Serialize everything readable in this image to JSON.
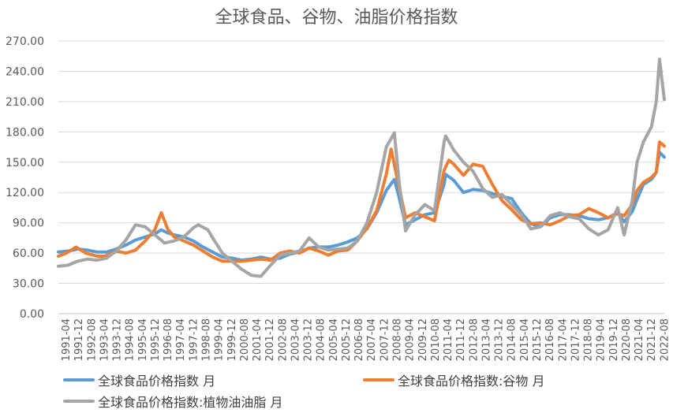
{
  "chart_data": {
    "type": "line",
    "title": "全球食品、谷物、油脂价格指数",
    "xlabel": "",
    "ylabel": "",
    "ylim": [
      0,
      270
    ],
    "y_ticks": [
      "0.00",
      "30.00",
      "60.00",
      "90.00",
      "120.00",
      "150.00",
      "180.00",
      "210.00",
      "240.00",
      "270.00"
    ],
    "x_tick_labels": [
      "1991-04",
      "1991-12",
      "1992-08",
      "1993-04",
      "1993-12",
      "1994-08",
      "1995-04",
      "1995-12",
      "1996-08",
      "1997-04",
      "1997-12",
      "1998-08",
      "1999-04",
      "1999-12",
      "2000-08",
      "2001-04",
      "2001-12",
      "2002-08",
      "2003-04",
      "2003-12",
      "2004-08",
      "2005-04",
      "2005-12",
      "2006-08",
      "2007-04",
      "2007-12",
      "2008-08",
      "2009-04",
      "2009-12",
      "2010-08",
      "2011-04",
      "2011-12",
      "2012-08",
      "2013-04",
      "2013-12",
      "2014-08",
      "2015-04",
      "2015-12",
      "2016-08",
      "2017-04",
      "2017-12",
      "2018-08",
      "2019-04",
      "2019-12",
      "2020-08",
      "2021-04",
      "2021-12",
      "2022-08"
    ],
    "x_range": [
      "1991-01",
      "2022-06"
    ],
    "grid": true,
    "legend_position": "bottom",
    "series": [
      {
        "name": "全球食品价格指数 月",
        "color": "#5B9BD5",
        "points": [
          [
            "1991-01",
            61
          ],
          [
            "1991-07",
            62
          ],
          [
            "1992-01",
            64
          ],
          [
            "1992-07",
            63
          ],
          [
            "1993-01",
            61
          ],
          [
            "1993-07",
            61
          ],
          [
            "1994-01",
            64
          ],
          [
            "1994-07",
            68
          ],
          [
            "1995-01",
            73
          ],
          [
            "1995-07",
            76
          ],
          [
            "1996-01",
            79
          ],
          [
            "1996-05",
            83
          ],
          [
            "1996-09",
            80
          ],
          [
            "1997-01",
            78
          ],
          [
            "1997-07",
            76
          ],
          [
            "1998-01",
            72
          ],
          [
            "1998-07",
            66
          ],
          [
            "1999-01",
            61
          ],
          [
            "1999-07",
            56
          ],
          [
            "2000-01",
            55
          ],
          [
            "2000-07",
            53
          ],
          [
            "2001-01",
            54
          ],
          [
            "2001-07",
            56
          ],
          [
            "2002-01",
            54
          ],
          [
            "2002-07",
            55
          ],
          [
            "2003-01",
            59
          ],
          [
            "2003-07",
            61
          ],
          [
            "2004-01",
            65
          ],
          [
            "2004-07",
            66
          ],
          [
            "2005-01",
            66
          ],
          [
            "2005-07",
            68
          ],
          [
            "2006-01",
            71
          ],
          [
            "2006-07",
            75
          ],
          [
            "2007-01",
            84
          ],
          [
            "2007-07",
            100
          ],
          [
            "2008-01",
            122
          ],
          [
            "2008-06",
            133
          ],
          [
            "2008-09",
            115
          ],
          [
            "2009-01",
            88
          ],
          [
            "2009-07",
            93
          ],
          [
            "2010-01",
            98
          ],
          [
            "2010-07",
            100
          ],
          [
            "2011-01",
            128
          ],
          [
            "2011-02",
            138
          ],
          [
            "2011-07",
            132
          ],
          [
            "2012-01",
            120
          ],
          [
            "2012-07",
            123
          ],
          [
            "2013-01",
            122
          ],
          [
            "2013-07",
            119
          ],
          [
            "2014-01",
            116
          ],
          [
            "2014-07",
            114
          ],
          [
            "2015-01",
            100
          ],
          [
            "2015-07",
            89
          ],
          [
            "2016-01",
            86
          ],
          [
            "2016-07",
            95
          ],
          [
            "2017-01",
            98
          ],
          [
            "2017-07",
            98
          ],
          [
            "2018-01",
            97
          ],
          [
            "2018-07",
            94
          ],
          [
            "2019-01",
            93
          ],
          [
            "2019-07",
            95
          ],
          [
            "2020-01",
            100
          ],
          [
            "2020-05",
            91
          ],
          [
            "2020-10",
            101
          ],
          [
            "2021-01",
            113
          ],
          [
            "2021-05",
            128
          ],
          [
            "2021-10",
            133
          ],
          [
            "2022-01",
            140
          ],
          [
            "2022-03",
            160
          ],
          [
            "2022-06",
            155
          ]
        ]
      },
      {
        "name": "全球食品价格指数:谷物 月",
        "color": "#ED7D31",
        "points": [
          [
            "1991-01",
            57
          ],
          [
            "1991-06",
            60
          ],
          [
            "1991-12",
            66
          ],
          [
            "1992-06",
            60
          ],
          [
            "1993-01",
            57
          ],
          [
            "1993-06",
            57
          ],
          [
            "1994-01",
            62
          ],
          [
            "1994-07",
            60
          ],
          [
            "1995-01",
            63
          ],
          [
            "1995-07",
            72
          ],
          [
            "1996-01",
            83
          ],
          [
            "1996-05",
            100
          ],
          [
            "1996-09",
            84
          ],
          [
            "1997-01",
            76
          ],
          [
            "1997-07",
            72
          ],
          [
            "1998-01",
            68
          ],
          [
            "1998-07",
            62
          ],
          [
            "1999-01",
            56
          ],
          [
            "1999-07",
            52
          ],
          [
            "2000-01",
            52
          ],
          [
            "2000-07",
            52
          ],
          [
            "2001-01",
            53
          ],
          [
            "2001-07",
            54
          ],
          [
            "2002-01",
            53
          ],
          [
            "2002-07",
            60
          ],
          [
            "2003-01",
            62
          ],
          [
            "2003-07",
            60
          ],
          [
            "2004-01",
            65
          ],
          [
            "2004-07",
            62
          ],
          [
            "2005-01",
            58
          ],
          [
            "2005-07",
            62
          ],
          [
            "2006-01",
            63
          ],
          [
            "2006-07",
            72
          ],
          [
            "2007-01",
            85
          ],
          [
            "2007-07",
            102
          ],
          [
            "2008-01",
            138
          ],
          [
            "2008-04",
            163
          ],
          [
            "2008-09",
            125
          ],
          [
            "2009-01",
            95
          ],
          [
            "2009-07",
            100
          ],
          [
            "2010-01",
            96
          ],
          [
            "2010-07",
            92
          ],
          [
            "2011-01",
            142
          ],
          [
            "2011-04",
            152
          ],
          [
            "2011-07",
            148
          ],
          [
            "2012-01",
            137
          ],
          [
            "2012-07",
            148
          ],
          [
            "2013-01",
            146
          ],
          [
            "2013-07",
            128
          ],
          [
            "2014-01",
            112
          ],
          [
            "2014-07",
            103
          ],
          [
            "2015-01",
            93
          ],
          [
            "2015-07",
            89
          ],
          [
            "2016-01",
            90
          ],
          [
            "2016-07",
            88
          ],
          [
            "2017-01",
            92
          ],
          [
            "2017-07",
            97
          ],
          [
            "2018-01",
            98
          ],
          [
            "2018-07",
            104
          ],
          [
            "2019-01",
            100
          ],
          [
            "2019-07",
            95
          ],
          [
            "2020-01",
            99
          ],
          [
            "2020-05",
            97
          ],
          [
            "2020-10",
            108
          ],
          [
            "2021-01",
            122
          ],
          [
            "2021-05",
            130
          ],
          [
            "2021-10",
            135
          ],
          [
            "2022-01",
            140
          ],
          [
            "2022-03",
            170
          ],
          [
            "2022-06",
            166
          ]
        ]
      },
      {
        "name": "全球食品价格指数:植物油油脂 月",
        "color": "#A5A5A5",
        "points": [
          [
            "1991-01",
            47
          ],
          [
            "1991-07",
            48
          ],
          [
            "1992-01",
            52
          ],
          [
            "1992-07",
            54
          ],
          [
            "1993-01",
            53
          ],
          [
            "1993-07",
            55
          ],
          [
            "1994-01",
            62
          ],
          [
            "1994-07",
            73
          ],
          [
            "1995-01",
            88
          ],
          [
            "1995-07",
            86
          ],
          [
            "1996-01",
            78
          ],
          [
            "1996-07",
            70
          ],
          [
            "1997-01",
            72
          ],
          [
            "1997-07",
            76
          ],
          [
            "1998-01",
            85
          ],
          [
            "1998-04",
            88
          ],
          [
            "1998-10",
            83
          ],
          [
            "1999-01",
            75
          ],
          [
            "1999-07",
            60
          ],
          [
            "2000-01",
            52
          ],
          [
            "2000-07",
            44
          ],
          [
            "2001-01",
            38
          ],
          [
            "2001-07",
            37
          ],
          [
            "2002-01",
            48
          ],
          [
            "2002-07",
            58
          ],
          [
            "2003-01",
            60
          ],
          [
            "2003-07",
            62
          ],
          [
            "2004-01",
            75
          ],
          [
            "2004-07",
            66
          ],
          [
            "2005-01",
            63
          ],
          [
            "2005-07",
            64
          ],
          [
            "2006-01",
            65
          ],
          [
            "2006-07",
            72
          ],
          [
            "2007-01",
            90
          ],
          [
            "2007-07",
            120
          ],
          [
            "2008-01",
            165
          ],
          [
            "2008-06",
            179
          ],
          [
            "2008-09",
            130
          ],
          [
            "2009-01",
            82
          ],
          [
            "2009-07",
            98
          ],
          [
            "2010-01",
            108
          ],
          [
            "2010-07",
            102
          ],
          [
            "2011-01",
            170
          ],
          [
            "2011-02",
            176
          ],
          [
            "2011-07",
            162
          ],
          [
            "2012-01",
            150
          ],
          [
            "2012-07",
            141
          ],
          [
            "2013-01",
            124
          ],
          [
            "2013-07",
            115
          ],
          [
            "2014-01",
            118
          ],
          [
            "2014-07",
            108
          ],
          [
            "2015-01",
            98
          ],
          [
            "2015-07",
            84
          ],
          [
            "2016-01",
            86
          ],
          [
            "2016-07",
            97
          ],
          [
            "2017-01",
            100
          ],
          [
            "2017-07",
            96
          ],
          [
            "2018-01",
            94
          ],
          [
            "2018-07",
            84
          ],
          [
            "2019-01",
            78
          ],
          [
            "2019-07",
            83
          ],
          [
            "2020-01",
            105
          ],
          [
            "2020-05",
            78
          ],
          [
            "2020-10",
            112
          ],
          [
            "2021-01",
            150
          ],
          [
            "2021-05",
            170
          ],
          [
            "2021-10",
            185
          ],
          [
            "2022-01",
            210
          ],
          [
            "2022-03",
            252
          ],
          [
            "2022-06",
            212
          ]
        ]
      }
    ]
  }
}
